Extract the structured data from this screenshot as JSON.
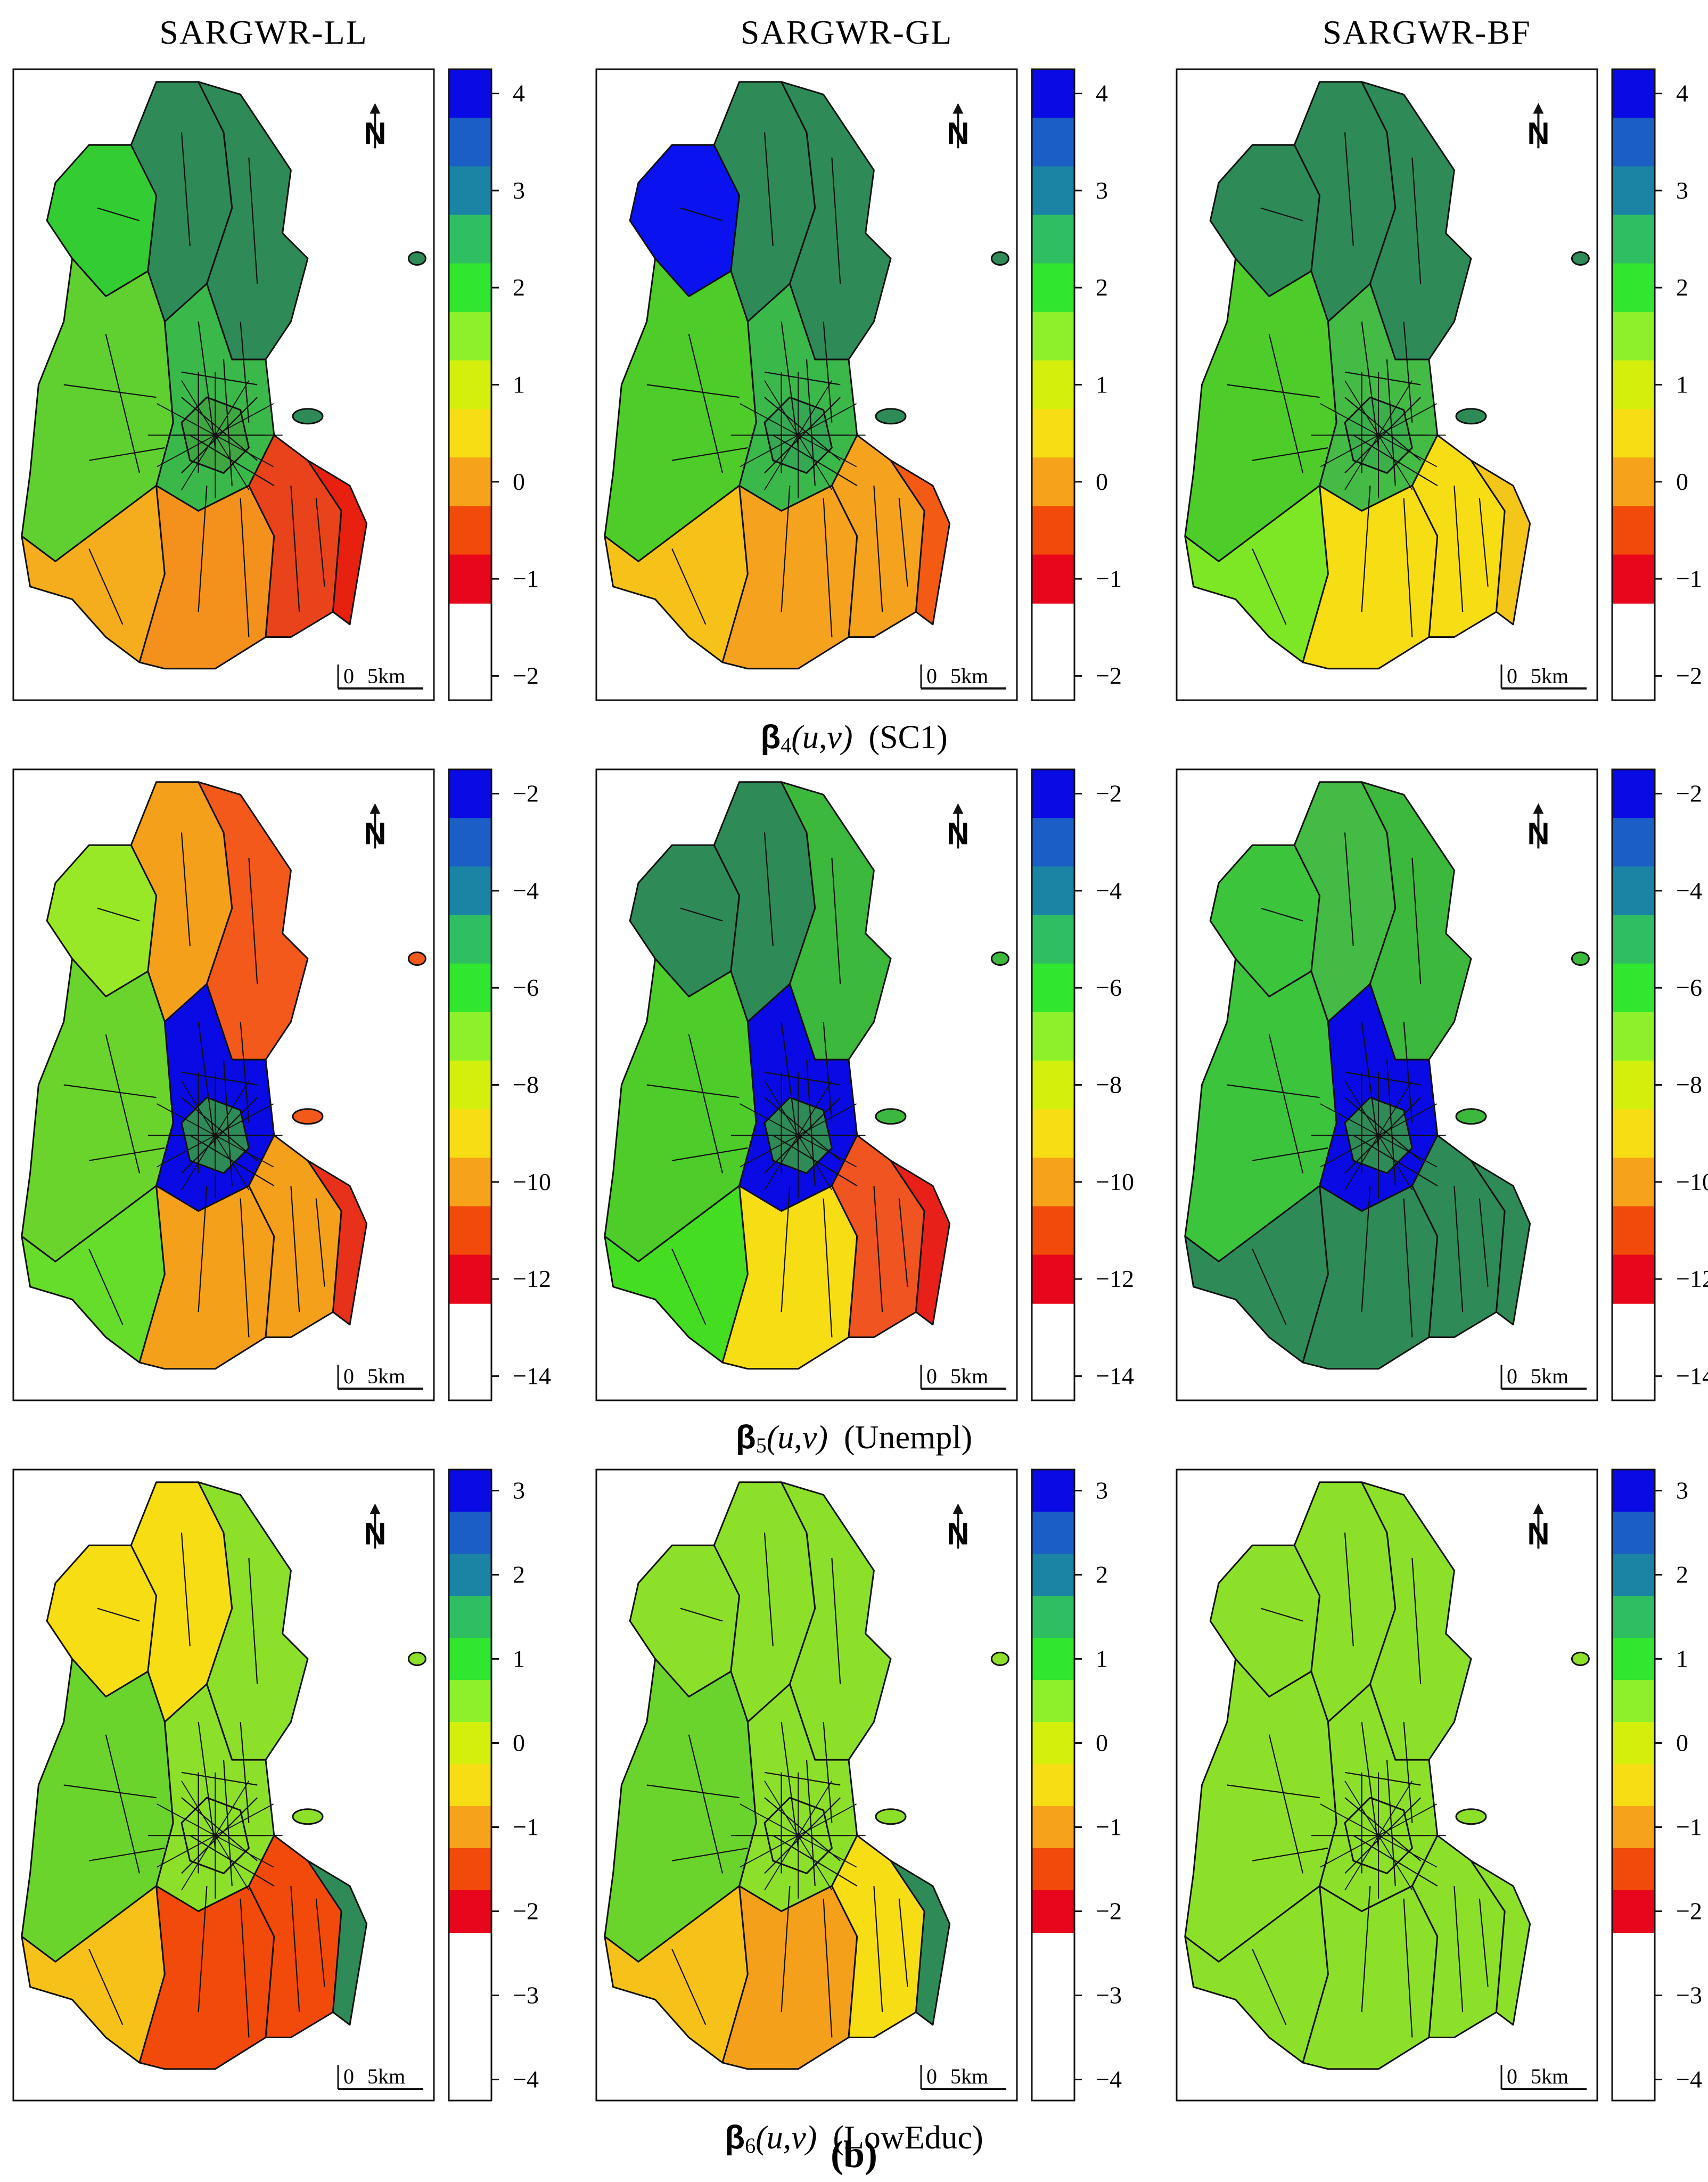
{
  "column_titles": [
    "SARGWR-LL",
    "SARGWR-GL",
    "SARGWR-BF"
  ],
  "north_label": "N",
  "scalebar": {
    "zero": "0",
    "distance": "5km"
  },
  "legend_colors": [
    "#e8061c",
    "#f24a0a",
    "#f6a21a",
    "#f7dd14",
    "#d5ef0c",
    "#8df02a",
    "#30e62e",
    "#2fbf62",
    "#1b83a3",
    "#1b5ec6",
    "#0a0ae4"
  ],
  "rows": [
    {
      "caption": {
        "beta": "β",
        "sub": "4",
        "arg": "(u,v)",
        "var": "(SC1)"
      },
      "legend_ticks": [
        "4",
        "3",
        "2",
        "1",
        "0",
        "−1",
        "−2"
      ],
      "maps": [
        {
          "model": "SARGWR-LL",
          "palette": {
            "north": "#2e8b57",
            "northwest": "#33cc33",
            "northeast": "#2e8b57",
            "west": "#5fd030",
            "center": "#3ab84a",
            "inner": "#3fa742",
            "southwest": "#f5ad1e",
            "south": "#f3911c",
            "southeast": "#e8431a",
            "coast": "#e8200f"
          }
        },
        {
          "model": "SARGWR-GL",
          "palette": {
            "north": "#2e8b57",
            "northwest": "#0a12f0",
            "northeast": "#2e8b57",
            "west": "#4dcc2a",
            "center": "#3ab84a",
            "inner": "#34a852",
            "southwest": "#f6c21a",
            "south": "#f5a31f",
            "southeast": "#f5a31f",
            "coast": "#f35a14"
          }
        },
        {
          "model": "SARGWR-BF",
          "palette": {
            "north": "#2e8b57",
            "northwest": "#2e8b57",
            "northeast": "#2e8b57",
            "west": "#4dcc2a",
            "center": "#44bb44",
            "inner": "#3bb04a",
            "southwest": "#7de625",
            "south": "#f7dd14",
            "southeast": "#f7dd14",
            "coast": "#f5c61a"
          }
        }
      ]
    },
    {
      "caption": {
        "beta": "β",
        "sub": "5",
        "arg": "(u,v)",
        "var": "(Unempl)"
      },
      "legend_ticks": [
        "−2",
        "−4",
        "−6",
        "−8",
        "−10",
        "−12",
        "−14"
      ],
      "maps": [
        {
          "model": "SARGWR-LL",
          "palette": {
            "north": "#f5a01a",
            "northwest": "#98e828",
            "northeast": "#f2591a",
            "west": "#6ad42c",
            "center": "#0a0ae4",
            "inner": "#2e8b57",
            "southwest": "#66dd2a",
            "south": "#f5a01a",
            "southeast": "#f5a01a",
            "coast": "#e8311a"
          }
        },
        {
          "model": "SARGWR-GL",
          "palette": {
            "north": "#2e8b57",
            "northwest": "#2e8b57",
            "northeast": "#3cb83c",
            "west": "#4dcc2a",
            "center": "#0a0ae4",
            "inner": "#2e8b57",
            "southwest": "#44dd22",
            "south": "#f7dd14",
            "southeast": "#f05420",
            "coast": "#e8201a"
          }
        },
        {
          "model": "SARGWR-BF",
          "palette": {
            "north": "#44bb44",
            "northwest": "#3cc43c",
            "northeast": "#3cb83c",
            "west": "#3cc43c",
            "center": "#0a0ae4",
            "inner": "#2e8b57",
            "southwest": "#2e8b57",
            "south": "#2e8b57",
            "southeast": "#2e8b57",
            "coast": "#2e8b57"
          }
        }
      ]
    },
    {
      "caption": {
        "beta": "β",
        "sub": "6",
        "arg": "(u,v)",
        "var": "(LowEduc)"
      },
      "legend_ticks": [
        "3",
        "2",
        "1",
        "0",
        "−1",
        "−2",
        "−3",
        "−4"
      ],
      "maps": [
        {
          "model": "SARGWR-LL",
          "palette": {
            "north": "#f7dd14",
            "northwest": "#f7dd14",
            "northeast": "#8de02a",
            "west": "#6ad42c",
            "center": "#8de02a",
            "inner": "#8de02a",
            "southwest": "#f6c21a",
            "south": "#f24a0a",
            "southeast": "#f24a0a",
            "coast": "#2e8b57"
          }
        },
        {
          "model": "SARGWR-GL",
          "palette": {
            "north": "#8de02a",
            "northwest": "#8de02a",
            "northeast": "#8de02a",
            "west": "#6ad42c",
            "center": "#8de02a",
            "inner": "#8de02a",
            "southwest": "#f6c21a",
            "south": "#f5a01a",
            "southeast": "#f7dd14",
            "coast": "#2e8b57"
          }
        },
        {
          "model": "SARGWR-BF",
          "palette": {
            "north": "#8de02a",
            "northwest": "#8de02a",
            "northeast": "#8de02a",
            "west": "#8de02a",
            "center": "#8de02a",
            "inner": "#8de02a",
            "southwest": "#8de02a",
            "south": "#8de02a",
            "southeast": "#8de02a",
            "coast": "#8de02a"
          }
        }
      ]
    }
  ],
  "panel_label": "(b)"
}
